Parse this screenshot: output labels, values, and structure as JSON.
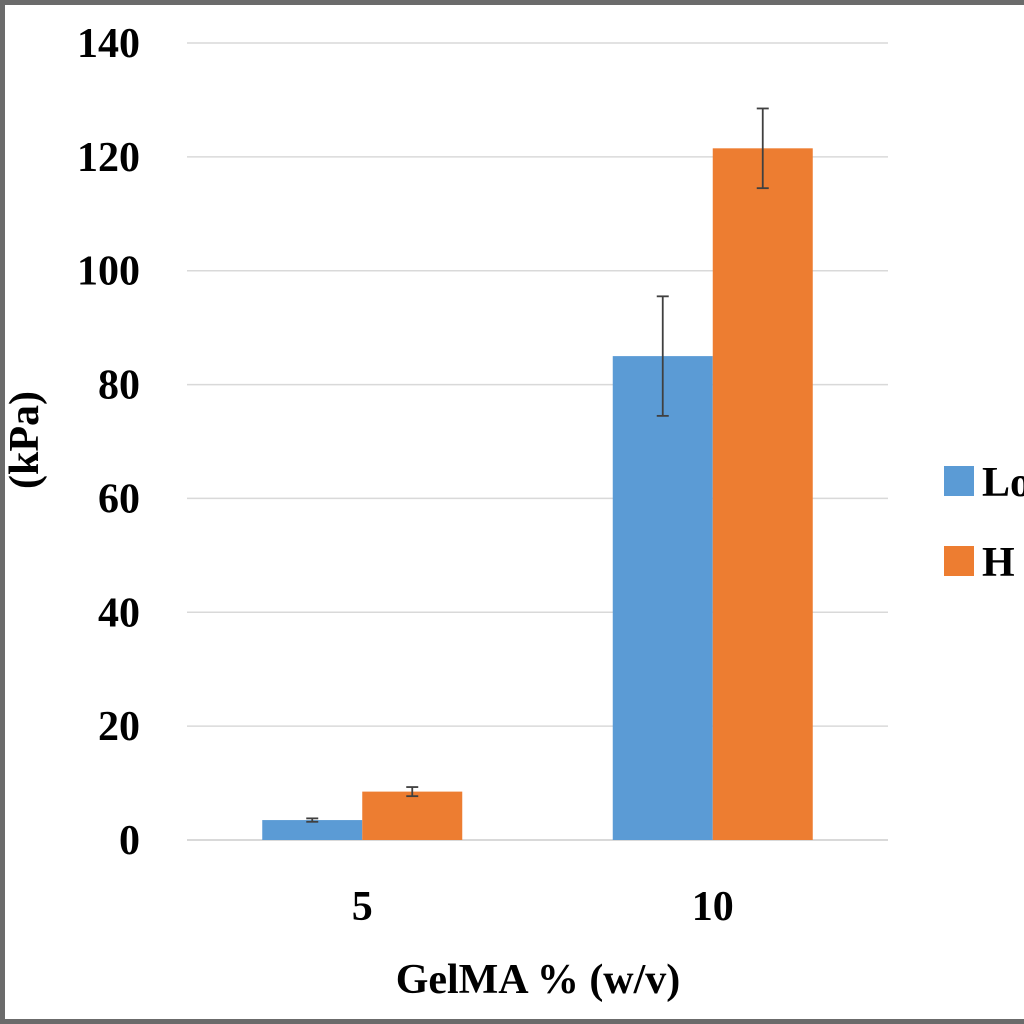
{
  "chart_data": {
    "type": "bar",
    "categories": [
      "5",
      "10"
    ],
    "series": [
      {
        "name": "Lo",
        "color": "#5b9bd5",
        "values": [
          3.5,
          85
        ],
        "errors": [
          0.3,
          10.5
        ]
      },
      {
        "name": "H",
        "color": "#ed7d31",
        "values": [
          8.5,
          121.5
        ],
        "errors": [
          0.8,
          7
        ]
      }
    ],
    "xlabel": "GelMA % (w/v)",
    "ylabel": "(kPa)",
    "ylim": [
      0,
      140
    ],
    "yticks": [
      "0",
      "20",
      "40",
      "60",
      "80",
      "100",
      "120",
      "140"
    ],
    "grid": true,
    "legend_position": "right"
  }
}
